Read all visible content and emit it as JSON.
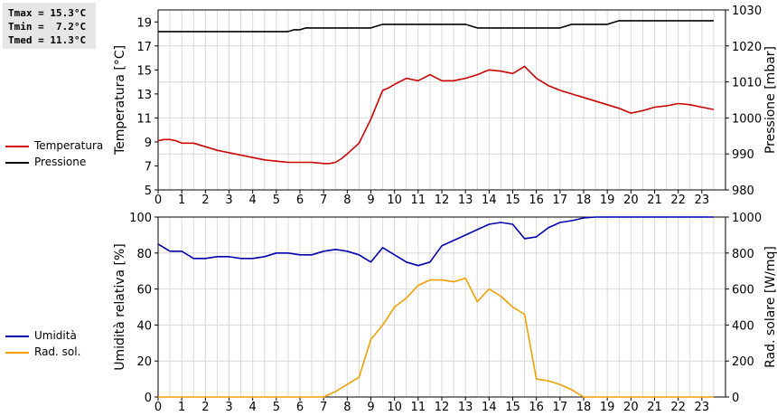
{
  "stats": {
    "tmax": "Tmax = 15.3°C",
    "tmin": "Tmin =  7.2°C",
    "tmed": "Tmed = 11.3°C"
  },
  "legend_top": [
    {
      "label": "Temperatura",
      "color": "#cc0000"
    },
    {
      "label": "Pressione",
      "color": "#000000"
    }
  ],
  "legend_bottom": [
    {
      "label": "Umidità",
      "color": "#0000b0"
    },
    {
      "label": "Rad. sol.",
      "color": "#f0a000"
    }
  ],
  "chart_data": [
    {
      "type": "line",
      "xlabel": "",
      "ylabel": "Temperatura [°C]",
      "y2label": "Pressione [mbar]",
      "xlim": [
        0,
        24
      ],
      "xticks": [
        "0",
        "1",
        "2",
        "3",
        "4",
        "5",
        "6",
        "7",
        "8",
        "9",
        "10",
        "11",
        "12",
        "13",
        "14",
        "15",
        "16",
        "17",
        "18",
        "19",
        "20",
        "21",
        "22",
        "23"
      ],
      "ylim": [
        5,
        20
      ],
      "yticks": [
        "5",
        "7",
        "9",
        "11",
        "13",
        "15",
        "17",
        "19"
      ],
      "y2lim": [
        980,
        1030
      ],
      "y2ticks": [
        "980",
        "990",
        "1000",
        "1010",
        "1020",
        "1030"
      ],
      "grid": true,
      "series": [
        {
          "name": "Temperatura",
          "axis": "left",
          "color": "#cc0000",
          "x": [
            0,
            0.25,
            0.5,
            0.75,
            1,
            1.5,
            2,
            2.5,
            3,
            3.5,
            4,
            4.5,
            5,
            5.5,
            6,
            6.5,
            7,
            7.25,
            7.5,
            7.75,
            8,
            8.5,
            9,
            9.25,
            9.5,
            9.75,
            10,
            10.5,
            11,
            11.5,
            12,
            12.5,
            13,
            13.5,
            14,
            14.5,
            15,
            15.5,
            16,
            16.5,
            17,
            17.5,
            18,
            18.5,
            19,
            19.5,
            20,
            20.5,
            21,
            21.5,
            22,
            22.5,
            23,
            23.5
          ],
          "y": [
            9.1,
            9.2,
            9.2,
            9.1,
            8.9,
            8.9,
            8.6,
            8.3,
            8.1,
            7.9,
            7.7,
            7.5,
            7.4,
            7.3,
            7.3,
            7.3,
            7.2,
            7.2,
            7.3,
            7.6,
            8.0,
            8.9,
            10.9,
            12.1,
            13.3,
            13.5,
            13.8,
            14.3,
            14.1,
            14.6,
            14.1,
            14.1,
            14.3,
            14.6,
            15.0,
            14.9,
            14.7,
            15.3,
            14.3,
            13.7,
            13.3,
            13.0,
            12.7,
            12.4,
            12.1,
            11.8,
            11.4,
            11.6,
            11.9,
            12.0,
            12.2,
            12.1,
            11.9,
            11.7
          ]
        },
        {
          "name": "Pressione",
          "axis": "right",
          "color": "#000000",
          "x": [
            0,
            5.5,
            5.75,
            6,
            6.25,
            9,
            9.25,
            9.5,
            13,
            13.25,
            13.5,
            17,
            17.25,
            17.5,
            19,
            19.25,
            19.5,
            23.5
          ],
          "y": [
            1024,
            1024,
            1024.5,
            1024.5,
            1025,
            1025,
            1025.5,
            1026,
            1026,
            1025.5,
            1025,
            1025,
            1025.5,
            1026,
            1026,
            1026.5,
            1027,
            1027
          ]
        }
      ]
    },
    {
      "type": "line",
      "xlabel": "",
      "ylabel": "Umidità relativa [%]",
      "y2label": "Rad. solare [W/mq]",
      "xlim": [
        0,
        24
      ],
      "xticks": [
        "0",
        "1",
        "2",
        "3",
        "4",
        "5",
        "6",
        "7",
        "8",
        "9",
        "10",
        "11",
        "12",
        "13",
        "14",
        "15",
        "16",
        "17",
        "18",
        "19",
        "20",
        "21",
        "22",
        "23"
      ],
      "ylim": [
        0,
        100
      ],
      "yticks": [
        "0",
        "20",
        "40",
        "60",
        "80",
        "100"
      ],
      "y2lim": [
        0,
        1000
      ],
      "y2ticks": [
        "0",
        "200",
        "400",
        "600",
        "800",
        "1000"
      ],
      "grid": true,
      "series": [
        {
          "name": "Umidità",
          "axis": "left",
          "color": "#0000b0",
          "x": [
            0,
            0.5,
            1,
            1.5,
            2,
            2.5,
            3,
            3.5,
            4,
            4.5,
            5,
            5.5,
            6,
            6.5,
            7,
            7.5,
            8,
            8.5,
            9,
            9.5,
            10,
            10.5,
            11,
            11.5,
            12,
            12.5,
            13,
            13.5,
            14,
            14.5,
            15,
            15.5,
            16,
            16.5,
            17,
            17.5,
            18,
            18.5,
            19,
            19.5,
            20,
            20.5,
            21,
            21.5,
            22,
            22.5,
            23,
            23.5
          ],
          "y": [
            85,
            81,
            81,
            77,
            77,
            78,
            78,
            77,
            77,
            78,
            80,
            80,
            79,
            79,
            81,
            82,
            81,
            79,
            75,
            83,
            79,
            75,
            73,
            75,
            84,
            87,
            90,
            93,
            96,
            97,
            96,
            88,
            89,
            94,
            97,
            98,
            99.5,
            100,
            100,
            100,
            100,
            100,
            100,
            100,
            100,
            100,
            100,
            100
          ]
        },
        {
          "name": "Rad. sol.",
          "axis": "right",
          "color": "#f0a000",
          "x": [
            0,
            7,
            7.5,
            8,
            8.5,
            9,
            9.5,
            10,
            10.5,
            11,
            11.5,
            12,
            12.5,
            13,
            13.5,
            14,
            14.5,
            15,
            15.5,
            16,
            16.5,
            17,
            17.5,
            18,
            23.5
          ],
          "y": [
            0,
            0,
            30,
            70,
            110,
            320,
            400,
            500,
            550,
            620,
            650,
            650,
            640,
            660,
            530,
            600,
            560,
            500,
            460,
            100,
            90,
            70,
            40,
            0,
            0
          ]
        }
      ]
    }
  ]
}
